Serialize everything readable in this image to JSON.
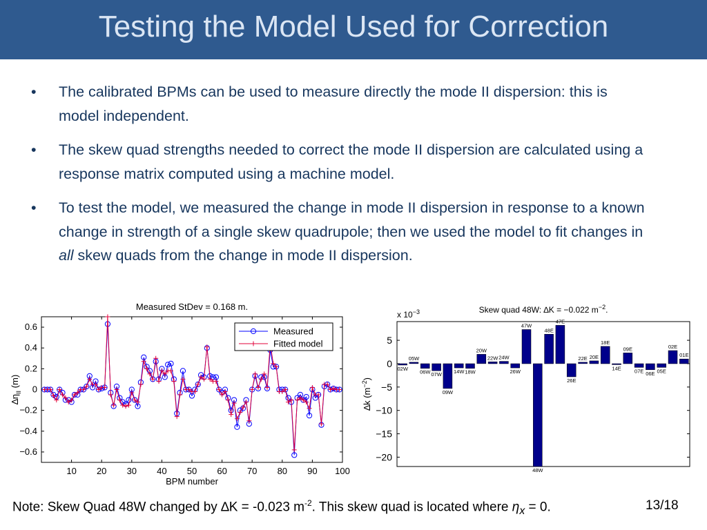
{
  "title": "Testing the Model Used for Correction",
  "bullets": {
    "b1": "The calibrated BPMs can be used to measure directly the mode II dispersion: this is model independent.",
    "b2": "The skew quad strengths needed to correct the mode II dispersion are calculated using a response matrix computed using a machine model.",
    "b3_pre": "To test the model, we measured the change in mode II dispersion in response to a known change in strength of a single skew quadrupole; then we used the model to fit changes in ",
    "b3_em": "all",
    "b3_post": " skew quads from the change in mode II dispersion."
  },
  "footer": {
    "text_pre": "Note: Skew Quad 48W changed by ",
    "delta": "∆",
    "text_k": "K = -0.023 m",
    "sup": "-2",
    "text_post": ".  This skew quad is located where ",
    "eta": "η",
    "sub": "x",
    "text_end": " = 0.",
    "page": "13/18"
  },
  "chart_data": [
    {
      "type": "line",
      "title": "Measured StDev = 0.168 m.",
      "xlabel": "BPM number",
      "ylabel": "∆η",
      "ylabel_sub": "II",
      "ylabel_unit": " (m)",
      "xlim": [
        0,
        100
      ],
      "ylim": [
        -0.7,
        0.7
      ],
      "xticks": [
        10,
        20,
        30,
        40,
        50,
        60,
        70,
        80,
        90,
        100
      ],
      "yticks": [
        0.6,
        0.4,
        0.2,
        0,
        -0.2,
        -0.4,
        -0.6
      ],
      "ytick_labels": [
        "0.6",
        "0.4",
        "0.2",
        "0",
        "−0.2",
        "−0.4",
        "−0.6"
      ],
      "legend_position": "top-right",
      "series": [
        {
          "name": "Measured",
          "color": "#0000ff",
          "marker": "circle",
          "x": [
            1,
            2,
            3,
            4,
            5,
            6,
            7,
            8,
            9,
            10,
            11,
            12,
            13,
            14,
            15,
            16,
            17,
            18,
            19,
            20,
            21,
            22,
            23,
            24,
            25,
            26,
            27,
            28,
            29,
            30,
            31,
            32,
            33,
            34,
            35,
            36,
            37,
            38,
            39,
            40,
            41,
            42,
            43,
            44,
            45,
            46,
            47,
            48,
            49,
            50,
            51,
            52,
            53,
            54,
            55,
            56,
            57,
            58,
            59,
            60,
            61,
            62,
            63,
            64,
            65,
            66,
            67,
            68,
            69,
            70,
            71,
            72,
            73,
            74,
            75,
            76,
            77,
            78,
            79,
            80,
            81,
            82,
            83,
            84,
            85,
            86,
            87,
            88,
            89,
            90,
            91,
            92,
            93,
            94,
            95,
            96,
            97,
            98,
            99
          ],
          "y": [
            0,
            0,
            0,
            -0.05,
            -0.07,
            0,
            -0.03,
            -0.1,
            -0.1,
            -0.12,
            -0.05,
            -0.05,
            0,
            0,
            0.03,
            0.13,
            0.02,
            0.08,
            0,
            0.01,
            0.02,
            0.63,
            -0.03,
            -0.16,
            0.03,
            -0.08,
            -0.12,
            -0.14,
            -0.1,
            0,
            -0.1,
            -0.16,
            0.07,
            0.31,
            0.22,
            0.18,
            0.1,
            0.27,
            0.1,
            0.2,
            0.12,
            0.24,
            0.25,
            0.1,
            -0.23,
            -0.03,
            0.18,
            0,
            0,
            -0.06,
            0,
            0.05,
            0.14,
            0.12,
            0.4,
            0.13,
            0.12,
            0.12,
            0,
            -0.03,
            0,
            -0.08,
            -0.2,
            -0.1,
            -0.36,
            -0.2,
            -0.18,
            -0.1,
            -0.33,
            0,
            0.13,
            0.01,
            0.12,
            0.12,
            0.01,
            0.38,
            0.22,
            0.22,
            0,
            0,
            0,
            -0.08,
            -0.12,
            -0.63,
            -0.08,
            -0.05,
            -0.1,
            -0.07,
            -0.25,
            0,
            -0.08,
            -0.05,
            -0.34,
            0.03,
            0.05,
            0,
            0.01,
            0,
            0
          ]
        },
        {
          "name": "Fitted model",
          "color": "#e0003a",
          "marker": "plus",
          "x": [
            1,
            2,
            3,
            4,
            5,
            6,
            7,
            8,
            9,
            10,
            11,
            12,
            13,
            14,
            15,
            16,
            17,
            18,
            19,
            20,
            21,
            22,
            23,
            24,
            25,
            26,
            27,
            28,
            29,
            30,
            31,
            32,
            33,
            34,
            35,
            36,
            37,
            38,
            39,
            40,
            41,
            42,
            43,
            44,
            45,
            46,
            47,
            48,
            49,
            50,
            51,
            52,
            53,
            54,
            55,
            56,
            57,
            58,
            59,
            60,
            61,
            62,
            63,
            64,
            65,
            66,
            67,
            68,
            69,
            70,
            71,
            72,
            73,
            74,
            75,
            76,
            77,
            78,
            79,
            80,
            81,
            82,
            83,
            84,
            85,
            86,
            87,
            88,
            89,
            90,
            91,
            92,
            93,
            94,
            95,
            96,
            97,
            98,
            99
          ],
          "y": [
            0,
            0,
            0,
            -0.06,
            -0.1,
            0,
            -0.05,
            -0.08,
            -0.12,
            -0.1,
            -0.05,
            -0.03,
            0,
            0,
            0.03,
            0.1,
            0.05,
            0.05,
            0,
            0.02,
            0.02,
            0.7,
            -0.05,
            -0.15,
            0,
            -0.1,
            -0.15,
            -0.16,
            -0.15,
            -0.03,
            -0.1,
            -0.12,
            0.05,
            0.27,
            0.2,
            0.15,
            0.1,
            0.3,
            0.08,
            0.18,
            0.15,
            0.18,
            0.18,
            0.08,
            -0.26,
            -0.05,
            0.1,
            0,
            0,
            -0.02,
            -0.02,
            0.05,
            0.12,
            0.1,
            0.41,
            0.1,
            0.08,
            0.08,
            0,
            -0.05,
            -0.02,
            -0.1,
            -0.24,
            -0.13,
            -0.28,
            -0.22,
            -0.17,
            -0.12,
            -0.3,
            0,
            0.15,
            0.02,
            0.1,
            0.15,
            0.02,
            0.45,
            0.25,
            0.22,
            -0.02,
            -0.02,
            0,
            -0.12,
            -0.1,
            -0.58,
            -0.1,
            -0.08,
            -0.1,
            -0.12,
            -0.18,
            0.02,
            -0.05,
            -0.05,
            -0.33,
            0.05,
            0.05,
            0,
            0.01,
            0,
            0
          ]
        }
      ]
    },
    {
      "type": "bar",
      "title": "Skew quad 48W: ∆K = −0.022 m",
      "title_sup": "−2",
      "title_end": ".",
      "multiplier": "x 10",
      "multiplier_sup": "−3",
      "xlabel": "",
      "ylabel": "∆k (m",
      "ylabel_sup": "−2",
      "ylabel_end": ")",
      "ylim": [
        -22,
        9
      ],
      "yticks": [
        5,
        0,
        -5,
        -10,
        -15,
        -20
      ],
      "ytick_labels": [
        "5",
        "0",
        "−5",
        "−10",
        "−15",
        "−20"
      ],
      "bar_color": "#00008b",
      "categories": [
        "02W",
        "05W",
        "06W",
        "07W",
        "09W",
        "14W",
        "18W",
        "20W",
        "22W",
        "24W",
        "26W",
        "47W",
        "48W",
        "48E",
        "47E",
        "26E",
        "22E",
        "20E",
        "18E",
        "14E",
        "09E",
        "07E",
        "06E",
        "05E",
        "02E",
        "01E"
      ],
      "values": [
        -0.3,
        0.3,
        -1.0,
        -1.5,
        -5.3,
        -0.9,
        -1.0,
        2.0,
        0.4,
        0.5,
        -0.9,
        7.3,
        -22.0,
        6.3,
        8.2,
        -2.8,
        0.3,
        0.6,
        3.7,
        -0.2,
        2.3,
        -0.8,
        -1.3,
        -0.8,
        2.8,
        1.0
      ]
    }
  ]
}
